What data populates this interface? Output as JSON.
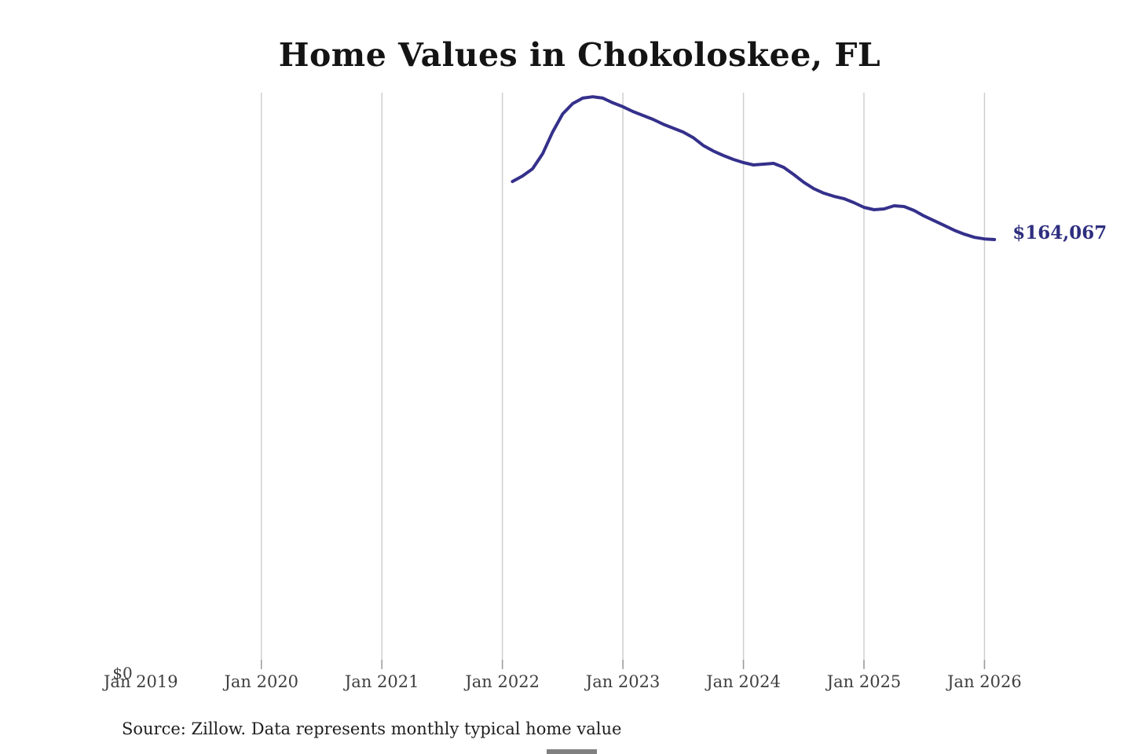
{
  "title": "Home Values in Chokoloskee, FL",
  "end_label": "$164,067",
  "y_zero_label": "$0",
  "source_note": "Source: Zillow. Data represents monthly typical home value",
  "colors": {
    "line": "#34308b",
    "end_label": "#2e2e7f",
    "gridline": "#cfcfcf",
    "tick": "#9b9b9b",
    "axis_text": "#3f3f3f",
    "title_text": "#141414"
  },
  "chart_data": {
    "type": "line",
    "title": "Home Values in Chokoloskee, FL",
    "xlabel": "",
    "ylabel": "",
    "ylim": [
      0,
      255000
    ],
    "x_tick_labels": [
      "Jan 2019",
      "Jan 2020",
      "Jan 2021",
      "Jan 2022",
      "Jan 2023",
      "Jan 2024",
      "Jan 2025",
      "Jan 2026"
    ],
    "gridline_labels": [
      "Jan 2020",
      "Jan 2021",
      "Jan 2022",
      "Jan 2023",
      "Jan 2024",
      "Jan 2025",
      "Jan 2026"
    ],
    "grid": "vertical-only",
    "legend": "none",
    "final_value": 164067,
    "end_annotation": "$164,067",
    "series": [
      {
        "name": "Monthly typical home value",
        "points": [
          {
            "date": "2022-02",
            "value": 186100
          },
          {
            "date": "2022-03",
            "value": 188200
          },
          {
            "date": "2022-04",
            "value": 190900
          },
          {
            "date": "2022-05",
            "value": 196600
          },
          {
            "date": "2022-06",
            "value": 204900
          },
          {
            "date": "2022-07",
            "value": 211800
          },
          {
            "date": "2022-08",
            "value": 215700
          },
          {
            "date": "2022-09",
            "value": 217800
          },
          {
            "date": "2022-10",
            "value": 218300
          },
          {
            "date": "2022-11",
            "value": 217800
          },
          {
            "date": "2022-12",
            "value": 216000
          },
          {
            "date": "2023-01",
            "value": 214500
          },
          {
            "date": "2023-02",
            "value": 212700
          },
          {
            "date": "2023-03",
            "value": 211200
          },
          {
            "date": "2023-04",
            "value": 209700
          },
          {
            "date": "2023-05",
            "value": 207900
          },
          {
            "date": "2023-06",
            "value": 206400
          },
          {
            "date": "2023-07",
            "value": 204900
          },
          {
            "date": "2023-08",
            "value": 202800
          },
          {
            "date": "2023-09",
            "value": 199800
          },
          {
            "date": "2023-10",
            "value": 197700
          },
          {
            "date": "2023-11",
            "value": 196000
          },
          {
            "date": "2023-12",
            "value": 194500
          },
          {
            "date": "2024-01",
            "value": 193300
          },
          {
            "date": "2024-02",
            "value": 192400
          },
          {
            "date": "2024-03",
            "value": 192700
          },
          {
            "date": "2024-04",
            "value": 193000
          },
          {
            "date": "2024-05",
            "value": 191500
          },
          {
            "date": "2024-06",
            "value": 188800
          },
          {
            "date": "2024-07",
            "value": 185800
          },
          {
            "date": "2024-08",
            "value": 183400
          },
          {
            "date": "2024-09",
            "value": 181700
          },
          {
            "date": "2024-10",
            "value": 180500
          },
          {
            "date": "2024-11",
            "value": 179600
          },
          {
            "date": "2024-12",
            "value": 178100
          },
          {
            "date": "2025-01",
            "value": 176300
          },
          {
            "date": "2025-02",
            "value": 175400
          },
          {
            "date": "2025-03",
            "value": 175700
          },
          {
            "date": "2025-04",
            "value": 176900
          },
          {
            "date": "2025-05",
            "value": 176600
          },
          {
            "date": "2025-06",
            "value": 175100
          },
          {
            "date": "2025-07",
            "value": 173000
          },
          {
            "date": "2025-08",
            "value": 171200
          },
          {
            "date": "2025-09",
            "value": 169400
          },
          {
            "date": "2025-10",
            "value": 167600
          },
          {
            "date": "2025-11",
            "value": 166100
          },
          {
            "date": "2025-12",
            "value": 164900
          },
          {
            "date": "2026-01",
            "value": 164300
          },
          {
            "date": "2026-02",
            "value": 164067
          }
        ]
      }
    ]
  }
}
